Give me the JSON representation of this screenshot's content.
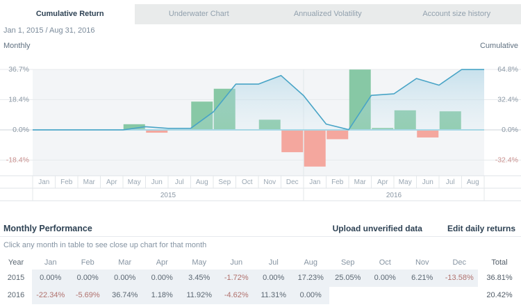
{
  "tabs": [
    {
      "label": "Cumulative Return",
      "active": true
    },
    {
      "label": "Underwater Chart",
      "active": false
    },
    {
      "label": "Annualized Volatility",
      "active": false
    },
    {
      "label": "Account size history",
      "active": false
    }
  ],
  "date_range": "Jan 1, 2015 / Aug 31, 2016",
  "chart_data": {
    "type": "bar+line",
    "left_axis_title": "Monthly",
    "right_axis_title": "Cumulative",
    "categories": [
      "Jan",
      "Feb",
      "Mar",
      "Apr",
      "May",
      "Jun",
      "Jul",
      "Aug",
      "Sep",
      "Oct",
      "Nov",
      "Dec",
      "Jan",
      "Feb",
      "Mar",
      "Apr",
      "May",
      "Jun",
      "Jul",
      "Aug"
    ],
    "year_groups": [
      {
        "label": "2015",
        "span": 12
      },
      {
        "label": "2016",
        "span": 8
      }
    ],
    "series": [
      {
        "name": "Monthly",
        "type": "bar",
        "axis": "left",
        "values": [
          0.0,
          0.0,
          0.0,
          0.0,
          3.45,
          -1.72,
          0.0,
          17.23,
          25.05,
          0.0,
          6.21,
          -13.58,
          -22.34,
          -5.69,
          36.74,
          1.18,
          11.92,
          -4.62,
          11.31,
          0.0
        ]
      },
      {
        "name": "Cumulative",
        "type": "line",
        "axis": "right",
        "values": [
          0.0,
          0.0,
          0.0,
          0.0,
          3.45,
          1.67,
          1.67,
          19.19,
          49.05,
          49.05,
          58.3,
          36.81,
          6.24,
          0.2,
          37.01,
          38.63,
          55.15,
          47.98,
          64.72,
          64.72
        ]
      }
    ],
    "left_axis": {
      "ticks": [
        {
          "value": 36.7,
          "label": "36.7%"
        },
        {
          "value": 18.4,
          "label": "18.4%"
        },
        {
          "value": 0,
          "label": "0.0%"
        },
        {
          "value": -18.4,
          "label": "-18.4%"
        }
      ],
      "tick_step": 18.4
    },
    "right_axis": {
      "ticks": [
        {
          "value": 64.8,
          "label": "64.8%"
        },
        {
          "value": 32.4,
          "label": "32.4%"
        },
        {
          "value": 0,
          "label": "0.0%"
        },
        {
          "value": -32.4,
          "label": "-32.4%"
        }
      ],
      "tick_step": 32.4
    },
    "grid": true,
    "legend_position": "none"
  },
  "performance": {
    "title": "Monthly Performance",
    "links": [
      "Upload unverified data",
      "Edit daily returns"
    ],
    "hint": "Click any month in table to see close up chart for that month",
    "columns": [
      "Year",
      "Jan",
      "Feb",
      "Mar",
      "Apr",
      "May",
      "Jun",
      "Jul",
      "Aug",
      "Sep",
      "Oct",
      "Nov",
      "Dec",
      "Total"
    ],
    "rows": [
      {
        "year": "2015",
        "values": [
          "0.00%",
          "0.00%",
          "0.00%",
          "0.00%",
          "3.45%",
          "-1.72%",
          "0.00%",
          "17.23%",
          "25.05%",
          "0.00%",
          "6.21%",
          "-13.58%"
        ],
        "total": "36.81%"
      },
      {
        "year": "2016",
        "values": [
          "-22.34%",
          "-5.69%",
          "36.74%",
          "1.18%",
          "11.92%",
          "-4.62%",
          "11.31%",
          "0.00%",
          "",
          "",
          "",
          ""
        ],
        "total": "20.42%"
      }
    ]
  },
  "colors": {
    "positive_bar": "#87c8a5",
    "negative_bar": "#f4a79e",
    "cumulative_line": "#48a4c6",
    "zero_axis_line": "#a7d7e5",
    "plot_background": "#f3f5f7",
    "gridline": "#e7eaec",
    "zero_gridline": "#ccd3d9",
    "tick_label": "#8a97a4",
    "negative_tick_label": "#c9908e",
    "month_label": "#9aa7b3",
    "heading_navy": "#2e4254",
    "negative_text": "#b0716d",
    "positive_text": "#5b6772",
    "row_highlight": "#edf1f5"
  }
}
